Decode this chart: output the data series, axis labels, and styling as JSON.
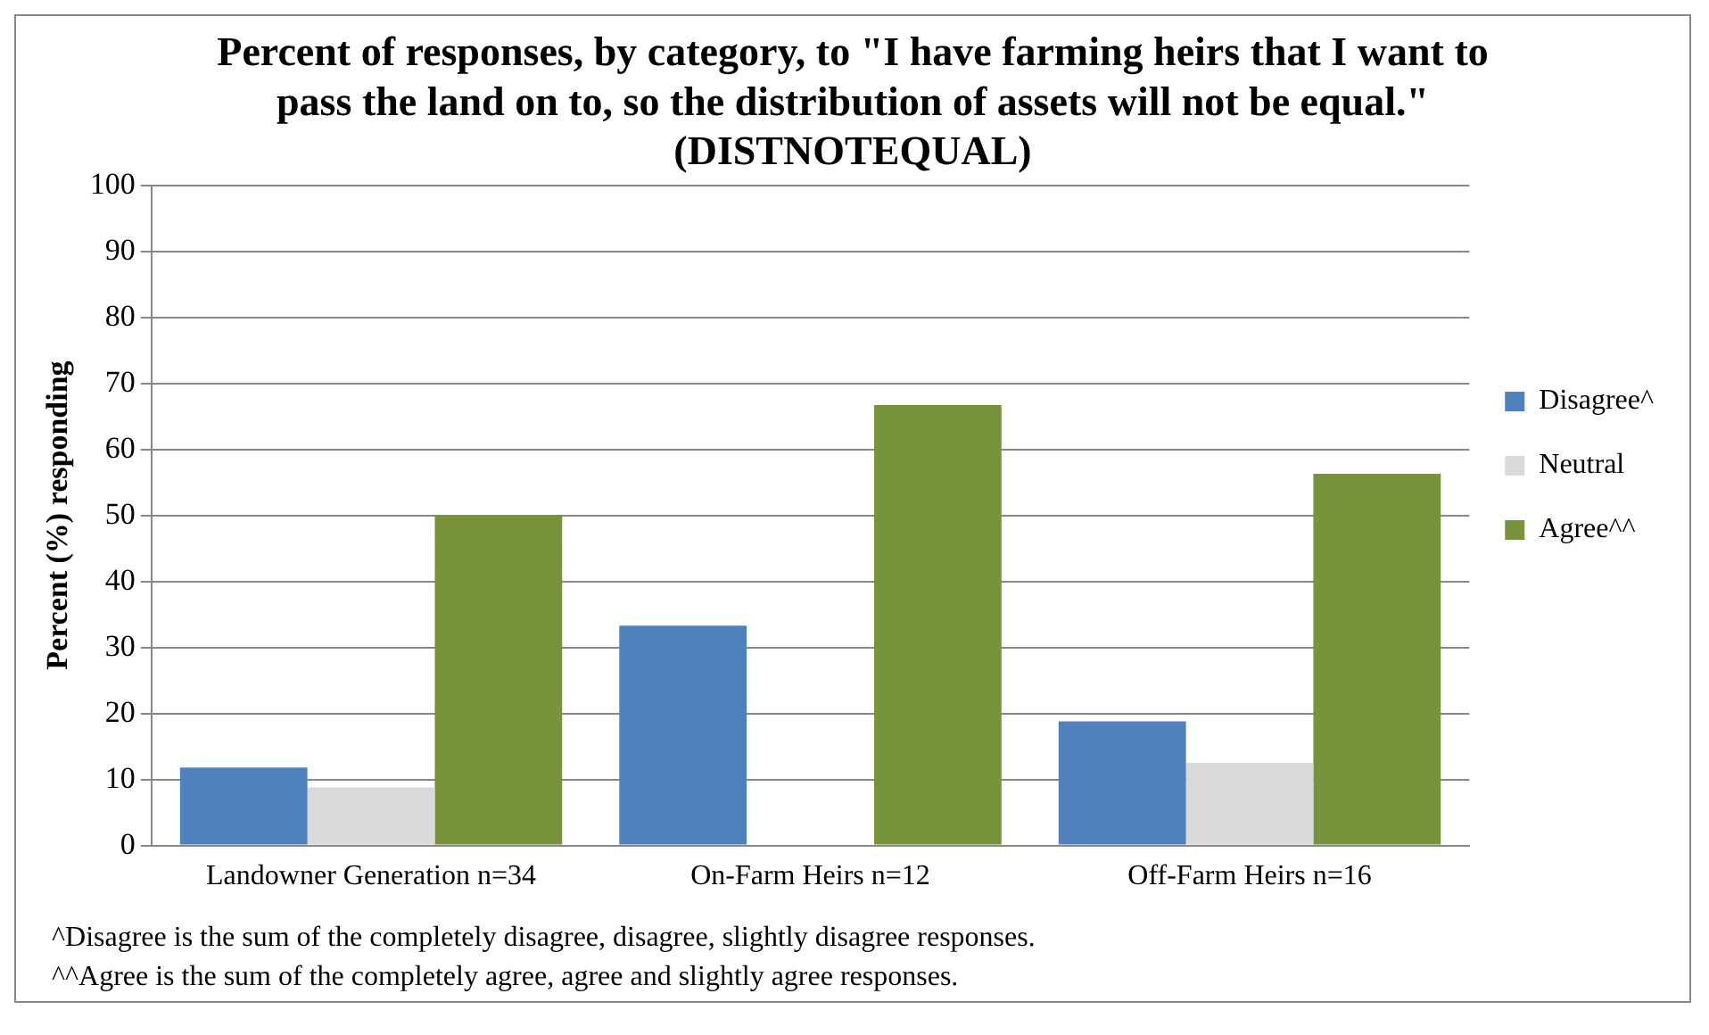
{
  "chart_data": {
    "type": "bar",
    "title": "Percent of responses, by category, to \"I have farming heirs that I want to pass the land on to, so the distribution of assets will not be equal.\" (DISTNOTEQUAL)",
    "ylabel": "Percent (%) responding",
    "categories": [
      "Landowner Generation n=34",
      "On-Farm Heirs n=12",
      "Off-Farm Heirs n=16"
    ],
    "series": [
      {
        "name": "Disagree^",
        "color": "#4f81bd",
        "values": [
          11.8,
          33.3,
          18.8
        ]
      },
      {
        "name": "Neutral",
        "color": "#d9d9d9",
        "values": [
          8.8,
          0,
          12.5
        ]
      },
      {
        "name": "Agree^^",
        "color": "#77933c",
        "values": [
          50,
          66.7,
          56.3
        ]
      }
    ],
    "ylim": [
      0,
      100
    ],
    "yticks": [
      0,
      10,
      20,
      30,
      40,
      50,
      60,
      70,
      80,
      90,
      100
    ],
    "grid": "y",
    "legend": "right",
    "annotations": [
      "^Disagree is the sum of the completely disagree, disagree, slightly disagree responses.",
      "^^Agree is the sum of the completely agree, agree and slightly agree responses."
    ]
  }
}
